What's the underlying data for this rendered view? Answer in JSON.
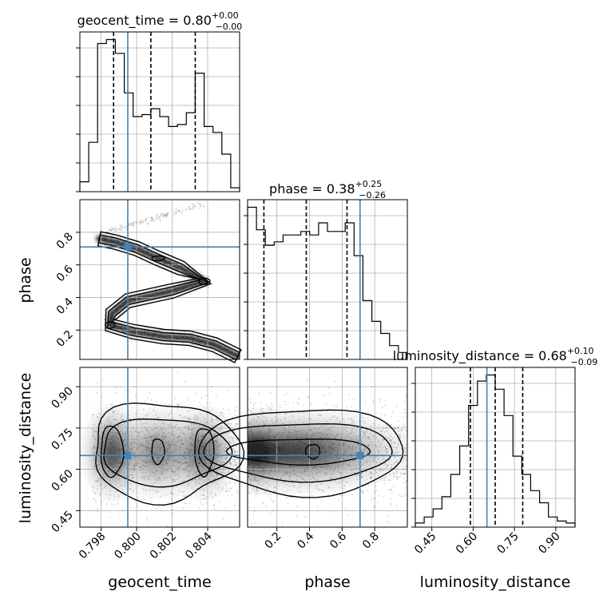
{
  "chart_data": {
    "type": "corner",
    "parameters": [
      {
        "name": "geocent_time",
        "label": "geocent_time",
        "range": [
          0.7968,
          0.8058
        ],
        "ticks": [
          "0.798",
          "0.800",
          "0.802",
          "0.804"
        ],
        "tick_values": [
          0.798,
          0.8,
          0.802,
          0.804
        ],
        "truth": 0.7995
      },
      {
        "name": "phase",
        "label": "phase",
        "range": [
          0.02,
          1.0
        ],
        "ticks": [
          "0.2",
          "0.4",
          "0.6",
          "0.8"
        ],
        "tick_values": [
          0.2,
          0.4,
          0.6,
          0.8
        ],
        "truth": 0.71
      },
      {
        "name": "luminosity_distance",
        "label": "luminosity_distance",
        "range": [
          0.39,
          0.97
        ],
        "ticks": [
          "0.45",
          "0.60",
          "0.75",
          "0.90"
        ],
        "tick_values": [
          0.45,
          0.6,
          0.75,
          0.9
        ],
        "truth": 0.65
      }
    ],
    "titles": [
      {
        "param": "geocent_time",
        "text": "geocent_time = 0.80",
        "sup": "+0.00",
        "sub": "−0.00"
      },
      {
        "param": "phase",
        "text": "phase = 0.38",
        "sup": "+0.25",
        "sub": "−0.26"
      },
      {
        "param": "luminosity_distance",
        "text": "luminosity_distance = 0.68",
        "sup": "+0.10",
        "sub": "−0.09"
      }
    ],
    "histograms": [
      {
        "param": "geocent_time",
        "bin_edges": [
          0.7968,
          0.7973,
          0.7978,
          0.7983,
          0.7988,
          0.7993,
          0.7998,
          0.8003,
          0.8008,
          0.8013,
          0.8018,
          0.8023,
          0.8028,
          0.8033,
          0.8038,
          0.8043,
          0.8048,
          0.8053,
          0.8058
        ],
        "counts": [
          5,
          25,
          75,
          77,
          70,
          50,
          38,
          39,
          42,
          38,
          33,
          34,
          40,
          60,
          33,
          30,
          19,
          2
        ],
        "quantiles": [
          0.7987,
          0.8008,
          0.8033
        ]
      },
      {
        "param": "phase",
        "bin_edges": [
          0.02,
          0.0744,
          0.1289,
          0.1833,
          0.2378,
          0.2922,
          0.3467,
          0.4011,
          0.4556,
          0.51,
          0.5644,
          0.6189,
          0.6733,
          0.7278,
          0.7822,
          0.8367,
          0.8911,
          0.9456,
          1.0
        ],
        "counts": [
          88,
          75,
          66,
          68,
          72,
          72,
          74,
          72,
          79,
          74,
          74,
          79,
          60,
          34,
          22,
          15,
          8,
          4
        ],
        "quantiles": [
          0.12,
          0.38,
          0.63
        ]
      },
      {
        "param": "luminosity_distance",
        "bin_edges": [
          0.39,
          0.4222,
          0.4544,
          0.4867,
          0.5189,
          0.5511,
          0.5833,
          0.6156,
          0.6478,
          0.68,
          0.7122,
          0.7444,
          0.7767,
          0.8089,
          0.8411,
          0.8733,
          0.9056,
          0.9378,
          0.97
        ],
        "counts": [
          2,
          5,
          9,
          15,
          26,
          40,
          60,
          72,
          75,
          68,
          55,
          35,
          26,
          18,
          12,
          5,
          3,
          2
        ],
        "quantiles": [
          0.59,
          0.68,
          0.78
        ]
      }
    ],
    "pairs": [
      {
        "x": "geocent_time",
        "y": "phase",
        "description": "narrow S-shaped ridge through (0.7979,0.76),(0.8000,0.70),(0.8038,0.50),(0.7990,0.38),(0.7985,0.23),(0.8030,0.15),(0.8057,0.04)"
      },
      {
        "x": "geocent_time",
        "y": "luminosity_distance",
        "description": "broad blob centered near 0.65, spanning geocent_time 0.7975-0.8056"
      },
      {
        "x": "phase",
        "y": "luminosity_distance",
        "description": "broad blob centered near 0.66, densest at low phase"
      }
    ]
  }
}
